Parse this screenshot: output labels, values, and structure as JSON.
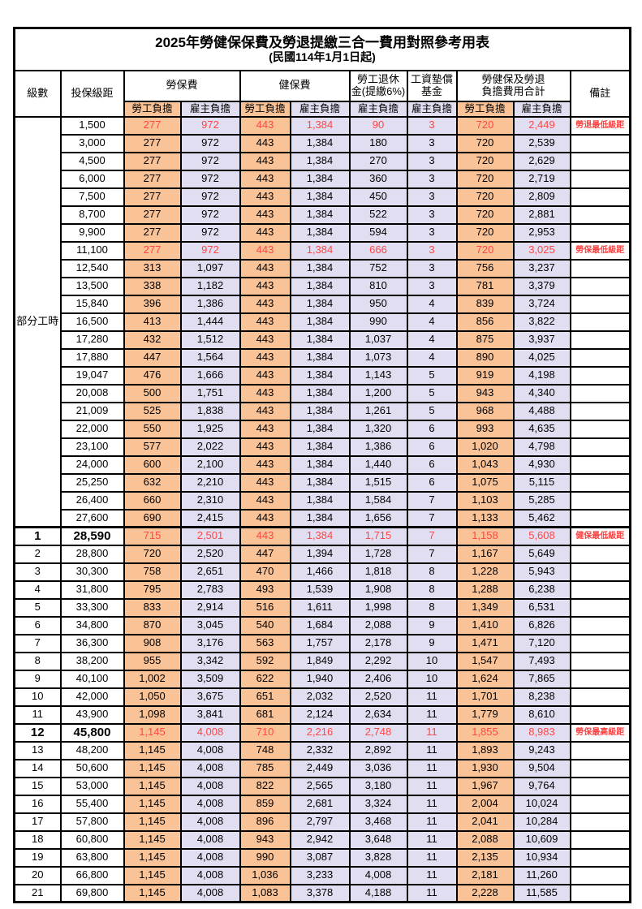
{
  "title": "2025年勞健保保費及勞退提繳三合一費用對照參考用表",
  "subtitle": "(民國114年1月1日起)",
  "colors": {
    "employee_bg": "#fac397",
    "employer_bg": "#e2def1",
    "highlight_text": "#ff4747",
    "remark_text": "#ff4040",
    "border": "#000000"
  },
  "header": {
    "level": "級數",
    "bracket": "投保級距",
    "labor_fee": "勞保費",
    "health_fee": "健保費",
    "pension_line1": "勞工退休",
    "pension_line2": "金(提繳6%)",
    "wage_fund_line1": "工資墊償",
    "wage_fund_line2": "基金",
    "total_line1": "勞健保及勞退",
    "total_line2": "負擔費用合計",
    "remark": "備註",
    "employee": "勞工負擔",
    "employer": "雇主負擔"
  },
  "part_time_label": "部分工時",
  "part_time_rowspan": 23,
  "rows": [
    {
      "level": "",
      "bracket": "1,500",
      "values": [
        "277",
        "972",
        "443",
        "1,384",
        "90",
        "3",
        "720",
        "2,449"
      ],
      "remark": "勞退最低級距",
      "red": true,
      "bold": false
    },
    {
      "level": "",
      "bracket": "3,000",
      "values": [
        "277",
        "972",
        "443",
        "1,384",
        "180",
        "3",
        "720",
        "2,539"
      ],
      "remark": "",
      "red": false,
      "bold": false
    },
    {
      "level": "",
      "bracket": "4,500",
      "values": [
        "277",
        "972",
        "443",
        "1,384",
        "270",
        "3",
        "720",
        "2,629"
      ],
      "remark": "",
      "red": false,
      "bold": false
    },
    {
      "level": "",
      "bracket": "6,000",
      "values": [
        "277",
        "972",
        "443",
        "1,384",
        "360",
        "3",
        "720",
        "2,719"
      ],
      "remark": "",
      "red": false,
      "bold": false
    },
    {
      "level": "",
      "bracket": "7,500",
      "values": [
        "277",
        "972",
        "443",
        "1,384",
        "450",
        "3",
        "720",
        "2,809"
      ],
      "remark": "",
      "red": false,
      "bold": false
    },
    {
      "level": "",
      "bracket": "8,700",
      "values": [
        "277",
        "972",
        "443",
        "1,384",
        "522",
        "3",
        "720",
        "2,881"
      ],
      "remark": "",
      "red": false,
      "bold": false
    },
    {
      "level": "",
      "bracket": "9,900",
      "values": [
        "277",
        "972",
        "443",
        "1,384",
        "594",
        "3",
        "720",
        "2,953"
      ],
      "remark": "",
      "red": false,
      "bold": false
    },
    {
      "level": "",
      "bracket": "11,100",
      "values": [
        "277",
        "972",
        "443",
        "1,384",
        "666",
        "3",
        "720",
        "3,025"
      ],
      "remark": "勞保最低級距",
      "red": true,
      "bold": false
    },
    {
      "level": "",
      "bracket": "12,540",
      "values": [
        "313",
        "1,097",
        "443",
        "1,384",
        "752",
        "3",
        "756",
        "3,237"
      ],
      "remark": "",
      "red": false,
      "bold": false
    },
    {
      "level": "",
      "bracket": "13,500",
      "values": [
        "338",
        "1,182",
        "443",
        "1,384",
        "810",
        "3",
        "781",
        "3,379"
      ],
      "remark": "",
      "red": false,
      "bold": false
    },
    {
      "level": "",
      "bracket": "15,840",
      "values": [
        "396",
        "1,386",
        "443",
        "1,384",
        "950",
        "4",
        "839",
        "3,724"
      ],
      "remark": "",
      "red": false,
      "bold": false
    },
    {
      "level": "",
      "bracket": "16,500",
      "values": [
        "413",
        "1,444",
        "443",
        "1,384",
        "990",
        "4",
        "856",
        "3,822"
      ],
      "remark": "",
      "red": false,
      "bold": false
    },
    {
      "level": "",
      "bracket": "17,280",
      "values": [
        "432",
        "1,512",
        "443",
        "1,384",
        "1,037",
        "4",
        "875",
        "3,937"
      ],
      "remark": "",
      "red": false,
      "bold": false
    },
    {
      "level": "",
      "bracket": "17,880",
      "values": [
        "447",
        "1,564",
        "443",
        "1,384",
        "1,073",
        "4",
        "890",
        "4,025"
      ],
      "remark": "",
      "red": false,
      "bold": false
    },
    {
      "level": "",
      "bracket": "19,047",
      "values": [
        "476",
        "1,666",
        "443",
        "1,384",
        "1,143",
        "5",
        "919",
        "4,198"
      ],
      "remark": "",
      "red": false,
      "bold": false
    },
    {
      "level": "",
      "bracket": "20,008",
      "values": [
        "500",
        "1,751",
        "443",
        "1,384",
        "1,200",
        "5",
        "943",
        "4,340"
      ],
      "remark": "",
      "red": false,
      "bold": false
    },
    {
      "level": "",
      "bracket": "21,009",
      "values": [
        "525",
        "1,838",
        "443",
        "1,384",
        "1,261",
        "5",
        "968",
        "4,488"
      ],
      "remark": "",
      "red": false,
      "bold": false
    },
    {
      "level": "",
      "bracket": "22,000",
      "values": [
        "550",
        "1,925",
        "443",
        "1,384",
        "1,320",
        "6",
        "993",
        "4,635"
      ],
      "remark": "",
      "red": false,
      "bold": false
    },
    {
      "level": "",
      "bracket": "23,100",
      "values": [
        "577",
        "2,022",
        "443",
        "1,384",
        "1,386",
        "6",
        "1,020",
        "4,798"
      ],
      "remark": "",
      "red": false,
      "bold": false
    },
    {
      "level": "",
      "bracket": "24,000",
      "values": [
        "600",
        "2,100",
        "443",
        "1,384",
        "1,440",
        "6",
        "1,043",
        "4,930"
      ],
      "remark": "",
      "red": false,
      "bold": false
    },
    {
      "level": "",
      "bracket": "25,250",
      "values": [
        "632",
        "2,210",
        "443",
        "1,384",
        "1,515",
        "6",
        "1,075",
        "5,115"
      ],
      "remark": "",
      "red": false,
      "bold": false
    },
    {
      "level": "",
      "bracket": "26,400",
      "values": [
        "660",
        "2,310",
        "443",
        "1,384",
        "1,584",
        "7",
        "1,103",
        "5,285"
      ],
      "remark": "",
      "red": false,
      "bold": false
    },
    {
      "level": "",
      "bracket": "27,600",
      "values": [
        "690",
        "2,415",
        "443",
        "1,384",
        "1,656",
        "7",
        "1,133",
        "5,462"
      ],
      "remark": "",
      "red": false,
      "bold": false
    },
    {
      "level": "1",
      "bracket": "28,590",
      "values": [
        "715",
        "2,501",
        "443",
        "1,384",
        "1,715",
        "7",
        "1,158",
        "5,608"
      ],
      "remark": "健保最低級距",
      "red": true,
      "bold": true
    },
    {
      "level": "2",
      "bracket": "28,800",
      "values": [
        "720",
        "2,520",
        "447",
        "1,394",
        "1,728",
        "7",
        "1,167",
        "5,649"
      ],
      "remark": "",
      "red": false,
      "bold": false
    },
    {
      "level": "3",
      "bracket": "30,300",
      "values": [
        "758",
        "2,651",
        "470",
        "1,466",
        "1,818",
        "8",
        "1,228",
        "5,943"
      ],
      "remark": "",
      "red": false,
      "bold": false
    },
    {
      "level": "4",
      "bracket": "31,800",
      "values": [
        "795",
        "2,783",
        "493",
        "1,539",
        "1,908",
        "8",
        "1,288",
        "6,238"
      ],
      "remark": "",
      "red": false,
      "bold": false
    },
    {
      "level": "5",
      "bracket": "33,300",
      "values": [
        "833",
        "2,914",
        "516",
        "1,611",
        "1,998",
        "8",
        "1,349",
        "6,531"
      ],
      "remark": "",
      "red": false,
      "bold": false
    },
    {
      "level": "6",
      "bracket": "34,800",
      "values": [
        "870",
        "3,045",
        "540",
        "1,684",
        "2,088",
        "9",
        "1,410",
        "6,826"
      ],
      "remark": "",
      "red": false,
      "bold": false
    },
    {
      "level": "7",
      "bracket": "36,300",
      "values": [
        "908",
        "3,176",
        "563",
        "1,757",
        "2,178",
        "9",
        "1,471",
        "7,120"
      ],
      "remark": "",
      "red": false,
      "bold": false
    },
    {
      "level": "8",
      "bracket": "38,200",
      "values": [
        "955",
        "3,342",
        "592",
        "1,849",
        "2,292",
        "10",
        "1,547",
        "7,493"
      ],
      "remark": "",
      "red": false,
      "bold": false
    },
    {
      "level": "9",
      "bracket": "40,100",
      "values": [
        "1,002",
        "3,509",
        "622",
        "1,940",
        "2,406",
        "10",
        "1,624",
        "7,865"
      ],
      "remark": "",
      "red": false,
      "bold": false
    },
    {
      "level": "10",
      "bracket": "42,000",
      "values": [
        "1,050",
        "3,675",
        "651",
        "2,032",
        "2,520",
        "11",
        "1,701",
        "8,238"
      ],
      "remark": "",
      "red": false,
      "bold": false
    },
    {
      "level": "11",
      "bracket": "43,900",
      "values": [
        "1,098",
        "3,841",
        "681",
        "2,124",
        "2,634",
        "11",
        "1,779",
        "8,610"
      ],
      "remark": "",
      "red": false,
      "bold": false
    },
    {
      "level": "12",
      "bracket": "45,800",
      "values": [
        "1,145",
        "4,008",
        "710",
        "2,216",
        "2,748",
        "11",
        "1,855",
        "8,983"
      ],
      "remark": "勞保最高級距",
      "red": true,
      "bold": true
    },
    {
      "level": "13",
      "bracket": "48,200",
      "values": [
        "1,145",
        "4,008",
        "748",
        "2,332",
        "2,892",
        "11",
        "1,893",
        "9,243"
      ],
      "remark": "",
      "red": false,
      "bold": false
    },
    {
      "level": "14",
      "bracket": "50,600",
      "values": [
        "1,145",
        "4,008",
        "785",
        "2,449",
        "3,036",
        "11",
        "1,930",
        "9,504"
      ],
      "remark": "",
      "red": false,
      "bold": false
    },
    {
      "level": "15",
      "bracket": "53,000",
      "values": [
        "1,145",
        "4,008",
        "822",
        "2,565",
        "3,180",
        "11",
        "1,967",
        "9,764"
      ],
      "remark": "",
      "red": false,
      "bold": false
    },
    {
      "level": "16",
      "bracket": "55,400",
      "values": [
        "1,145",
        "4,008",
        "859",
        "2,681",
        "3,324",
        "11",
        "2,004",
        "10,024"
      ],
      "remark": "",
      "red": false,
      "bold": false
    },
    {
      "level": "17",
      "bracket": "57,800",
      "values": [
        "1,145",
        "4,008",
        "896",
        "2,797",
        "3,468",
        "11",
        "2,041",
        "10,284"
      ],
      "remark": "",
      "red": false,
      "bold": false
    },
    {
      "level": "18",
      "bracket": "60,800",
      "values": [
        "1,145",
        "4,008",
        "943",
        "2,942",
        "3,648",
        "11",
        "2,088",
        "10,609"
      ],
      "remark": "",
      "red": false,
      "bold": false
    },
    {
      "level": "19",
      "bracket": "63,800",
      "values": [
        "1,145",
        "4,008",
        "990",
        "3,087",
        "3,828",
        "11",
        "2,135",
        "10,934"
      ],
      "remark": "",
      "red": false,
      "bold": false
    },
    {
      "level": "20",
      "bracket": "66,800",
      "values": [
        "1,145",
        "4,008",
        "1,036",
        "3,233",
        "4,008",
        "11",
        "2,181",
        "11,260"
      ],
      "remark": "",
      "red": false,
      "bold": false
    },
    {
      "level": "21",
      "bracket": "69,800",
      "values": [
        "1,145",
        "4,008",
        "1,083",
        "3,378",
        "4,188",
        "11",
        "2,228",
        "11,585"
      ],
      "remark": "",
      "red": false,
      "bold": false
    }
  ]
}
